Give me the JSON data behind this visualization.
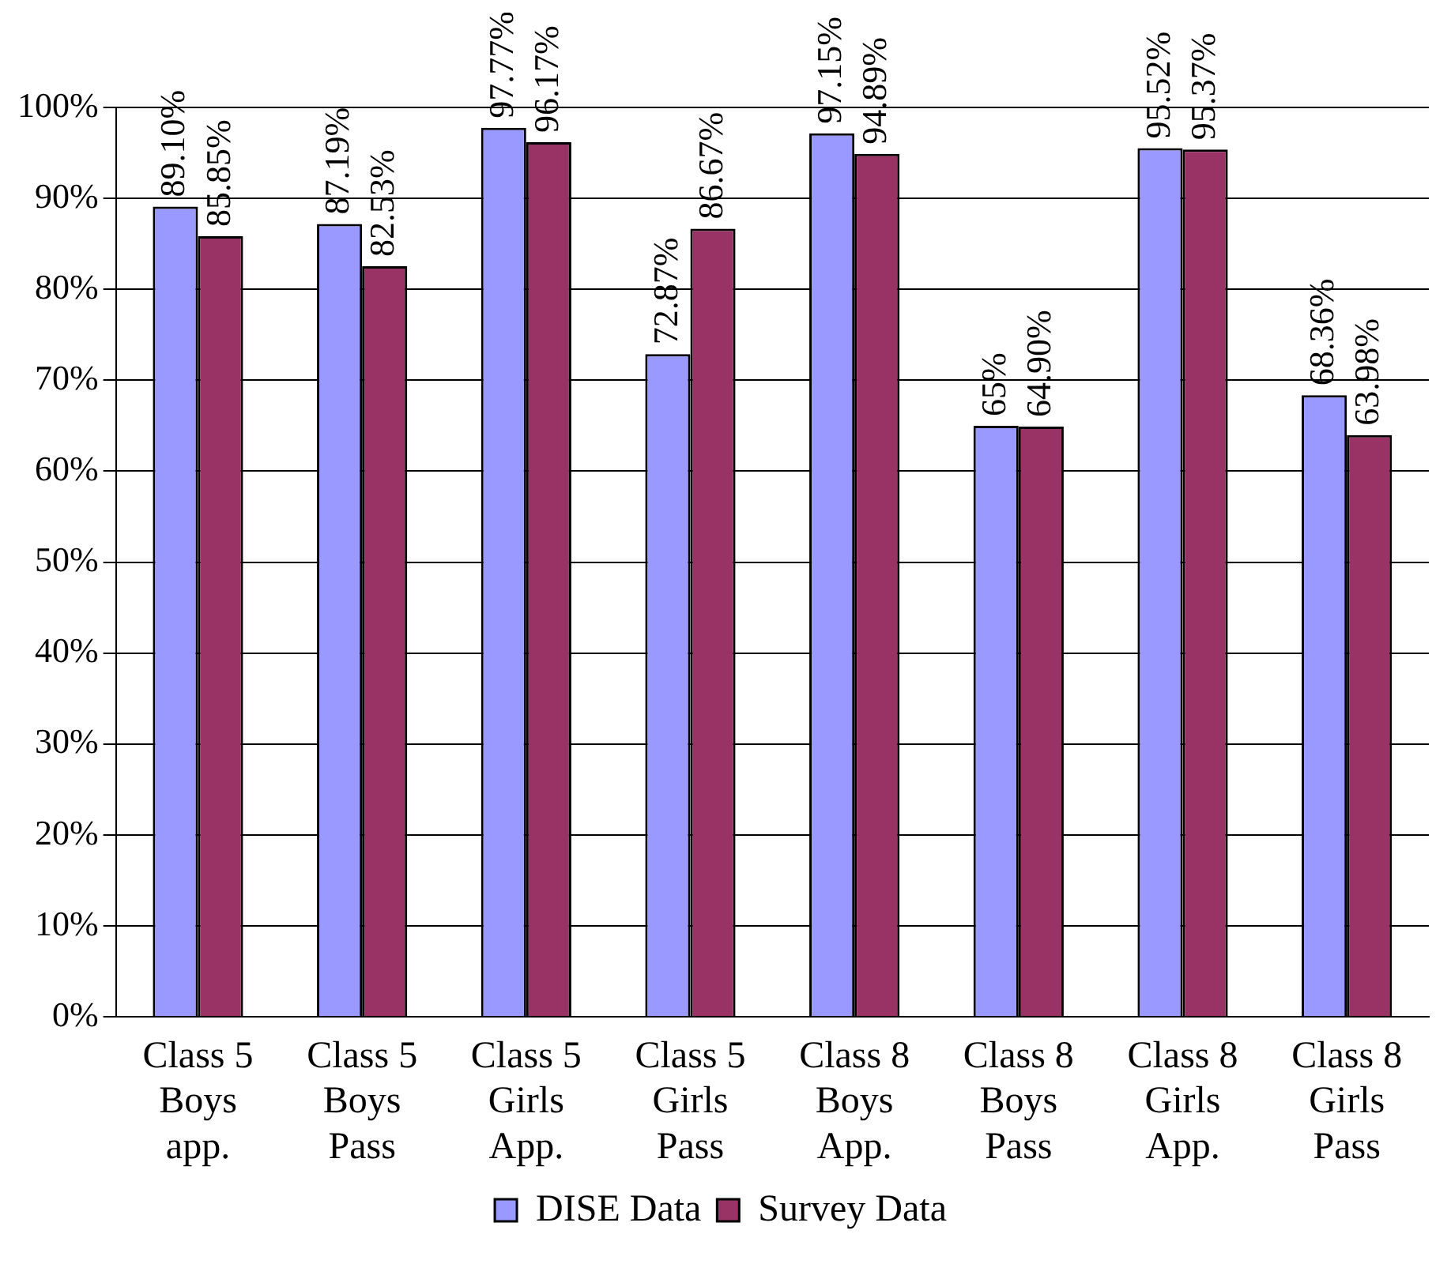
{
  "chart_data": {
    "type": "bar",
    "categories": [
      "Class 5 Boys app.",
      "Class 5 Boys Pass",
      "Class 5 Girls App.",
      "Class 5 Girls Pass",
      "Class 8 Boys App.",
      "Class 8 Boys Pass",
      "Class 8 Girls App.",
      "Class 8 Girls Pass"
    ],
    "series": [
      {
        "name": "DISE Data",
        "color": "#9999ff",
        "values": [
          89.1,
          87.19,
          97.77,
          72.87,
          97.15,
          65,
          95.52,
          68.36
        ],
        "value_labels": [
          "89.10%",
          "87.19%",
          "97.77%",
          "72.87%",
          "97.15%",
          "65%",
          "95.52%",
          "68.36%"
        ]
      },
      {
        "name": "Survey Data",
        "color": "#993366",
        "values": [
          85.85,
          82.53,
          96.17,
          86.67,
          94.89,
          64.9,
          95.37,
          63.98
        ],
        "value_labels": [
          "85.85%",
          "82.53%",
          "96.17%",
          "86.67%",
          "94.89%",
          "64.90%",
          "95.37%",
          "63.98%"
        ]
      }
    ],
    "ylim": [
      0,
      100
    ],
    "yticks": [
      {
        "value": 0,
        "label": "0%"
      },
      {
        "value": 10,
        "label": "10%"
      },
      {
        "value": 20,
        "label": "20%"
      },
      {
        "value": 30,
        "label": "30%"
      },
      {
        "value": 40,
        "label": "40%"
      },
      {
        "value": 50,
        "label": "50%"
      },
      {
        "value": 60,
        "label": "60%"
      },
      {
        "value": 70,
        "label": "70%"
      },
      {
        "value": 80,
        "label": "80%"
      },
      {
        "value": 90,
        "label": "90%"
      },
      {
        "value": 100,
        "label": "100%"
      }
    ],
    "grid": "y",
    "legend": "bottom"
  }
}
